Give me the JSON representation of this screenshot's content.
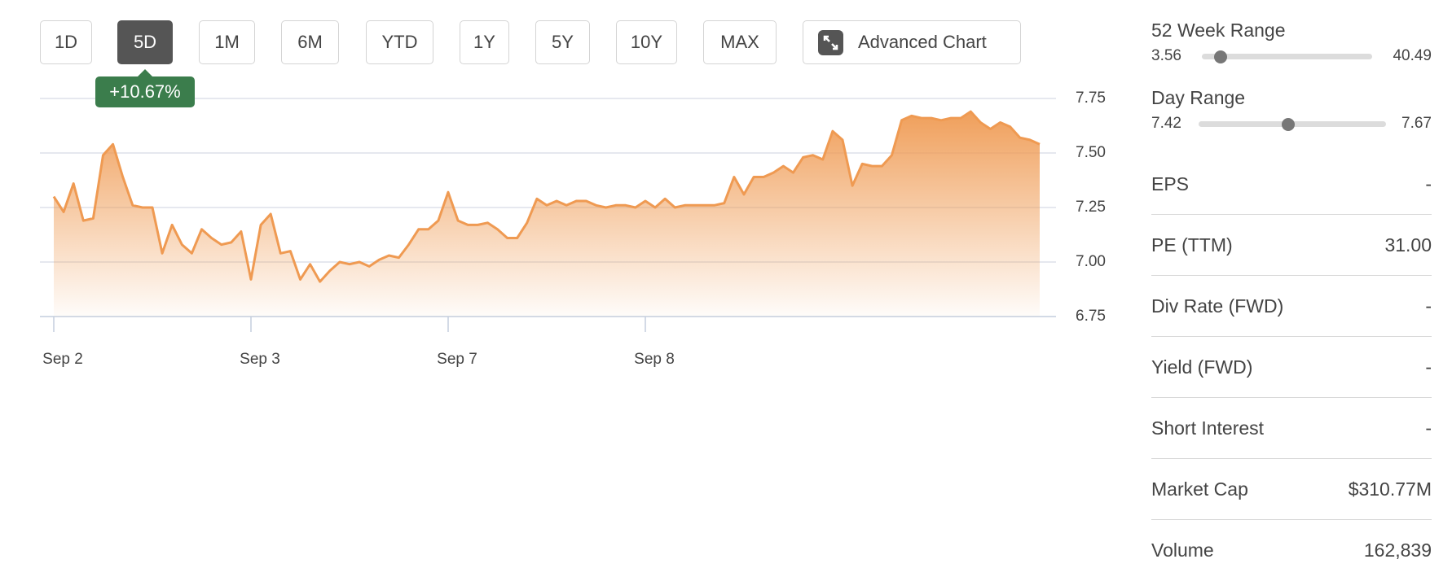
{
  "toolbar": {
    "buttons": [
      "1D",
      "5D",
      "1M",
      "6M",
      "YTD",
      "1Y",
      "5Y",
      "10Y",
      "MAX",
      "Advanced Chart"
    ]
  },
  "change": "+10.67%",
  "chart_data": {
    "type": "area",
    "color": "#ef9a52",
    "categories": [
      "Sep 2",
      null,
      null,
      null,
      null,
      null,
      null,
      null,
      null,
      null,
      null,
      null,
      null,
      null,
      null,
      null,
      null,
      null,
      null,
      null,
      "Sep 3",
      null,
      null,
      null,
      null,
      null,
      null,
      null,
      null,
      null,
      null,
      null,
      null,
      null,
      null,
      null,
      null,
      null,
      null,
      null,
      "Sep 7",
      null,
      null,
      null,
      null,
      null,
      null,
      null,
      null,
      null,
      null,
      null,
      null,
      null,
      null,
      null,
      null,
      null,
      null,
      null,
      "Sep 8",
      null,
      null,
      null,
      null,
      null,
      null,
      null,
      null,
      null,
      null,
      null,
      null,
      null,
      null,
      null,
      null,
      null,
      null,
      null,
      null,
      null,
      null,
      null,
      null,
      null,
      null,
      null,
      null,
      null,
      null,
      null,
      null,
      null,
      null,
      null,
      null,
      null,
      null,
      null,
      null
    ],
    "values": [
      7.3,
      7.23,
      7.36,
      7.19,
      7.2,
      7.49,
      7.54,
      7.39,
      7.26,
      7.25,
      7.25,
      7.04,
      7.17,
      7.08,
      7.04,
      7.15,
      7.11,
      7.08,
      7.09,
      7.14,
      6.92,
      7.17,
      7.22,
      7.04,
      7.05,
      6.92,
      6.99,
      6.91,
      6.96,
      7.0,
      6.99,
      7.0,
      6.98,
      7.01,
      7.03,
      7.02,
      7.08,
      7.15,
      7.15,
      7.19,
      7.32,
      7.19,
      7.17,
      7.17,
      7.18,
      7.15,
      7.11,
      7.11,
      7.18,
      7.29,
      7.26,
      7.28,
      7.26,
      7.28,
      7.28,
      7.26,
      7.25,
      7.26,
      7.26,
      7.25,
      7.28,
      7.25,
      7.29,
      7.25,
      7.26,
      7.26,
      7.26,
      7.26,
      7.27,
      7.39,
      7.31,
      7.39,
      7.39,
      7.41,
      7.44,
      7.41,
      7.48,
      7.49,
      7.47,
      7.6,
      7.56,
      7.35,
      7.45,
      7.44,
      7.44,
      7.49,
      7.65,
      7.67,
      7.66,
      7.66,
      7.65,
      7.66,
      7.66,
      7.69,
      7.64,
      7.61,
      7.64,
      7.62,
      7.57,
      7.56,
      7.54
    ],
    "ylim": [
      6.75,
      7.75
    ],
    "yticks": [
      6.75,
      {
        "value": 7,
        "label": "7.00"
      },
      7.25,
      {
        "value": 7.5,
        "label": "7.50"
      },
      7.75
    ],
    "grid": true
  },
  "ranges": [
    {
      "label": "52 Week Range",
      "low": 3.56,
      "high": 40.49,
      "current": 7.54
    },
    {
      "label": "Day Range",
      "low": 7.42,
      "high": 7.67,
      "current": 7.54
    }
  ],
  "stats": [
    {
      "label": "EPS",
      "value": "-"
    },
    {
      "label": "PE (TTM)",
      "value": "31.00"
    },
    {
      "label": "Div Rate (FWD)",
      "value": "-"
    },
    {
      "label": "Yield (FWD)",
      "value": "-"
    },
    {
      "label": "Short Interest",
      "value": "-"
    },
    {
      "label": "Market Cap",
      "value": "$310.77M"
    },
    {
      "label": "Volume",
      "value": "162,839"
    }
  ]
}
